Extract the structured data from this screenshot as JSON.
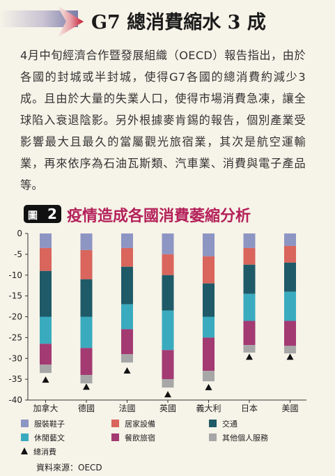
{
  "header": {
    "title": "G7 總消費縮水 3 成"
  },
  "body": {
    "paragraph": "4月中旬經濟合作暨發展組織（OECD）報告指出，由於各國的封城或半封城，使得G7各國的總消費約減少3成。且由於大量的失業人口，使得市場消費急凍，讓全球陷入衰退陰影。另外根據麥肯錫的報告，個別產業受影響最大且最久的當屬觀光旅宿業，其次是航空運輸業，再來依序為石油瓦斯類、汽車業、消費與電子產品等。"
  },
  "figure": {
    "badge_text": "圖",
    "badge_num": "2",
    "title": "疫情造成各國消費萎縮分析"
  },
  "source": "資料來源：OECD",
  "colors": {
    "clothing": "#8d95c3",
    "furnishing": "#d9655c",
    "transport": "#1f5a68",
    "recreation": "#3aabbf",
    "restaurants": "#a33a72",
    "other": "#a7a7a7",
    "total": "#111111"
  },
  "chart_data": {
    "type": "bar",
    "stacked": true,
    "categories": [
      "加拿大",
      "德國",
      "法國",
      "英國",
      "義大利",
      "日本",
      "美國"
    ],
    "ylim": [
      -40,
      0
    ],
    "yticks": [
      0,
      -5,
      -10,
      -15,
      -20,
      -25,
      -30,
      -35,
      -40
    ],
    "grid": false,
    "legend_position": "bottom",
    "series": [
      {
        "name": "服裝鞋子",
        "key": "clothing",
        "values": [
          -3.5,
          -4.0,
          -3.5,
          -5.0,
          -5.5,
          -3.5,
          -3.0
        ]
      },
      {
        "name": "居家設備",
        "key": "furnishing",
        "values": [
          -5.5,
          -7.0,
          -4.5,
          -5.0,
          -6.5,
          -4.0,
          -4.0
        ]
      },
      {
        "name": "交通",
        "key": "transport",
        "values": [
          -11.0,
          -9.0,
          -9.0,
          -8.5,
          -8.0,
          -7.0,
          -7.0
        ]
      },
      {
        "name": "休閒藝文",
        "key": "recreation",
        "values": [
          -6.5,
          -7.5,
          -6.0,
          -9.5,
          -5.0,
          -6.5,
          -7.0
        ]
      },
      {
        "name": "餐飲旅宿",
        "key": "restaurants",
        "values": [
          -5.0,
          -6.5,
          -6.0,
          -7.0,
          -8.0,
          -5.8,
          -6.0
        ]
      },
      {
        "name": "其他個人服務",
        "key": "other",
        "values": [
          -2.0,
          -2.0,
          -2.0,
          -2.0,
          -2.5,
          -1.8,
          -1.8
        ]
      }
    ],
    "total": {
      "name": "總消費",
      "values": [
        -34.0,
        -35.7,
        -31.8,
        -37.5,
        -35.8,
        -28.5,
        -28.5
      ]
    }
  }
}
